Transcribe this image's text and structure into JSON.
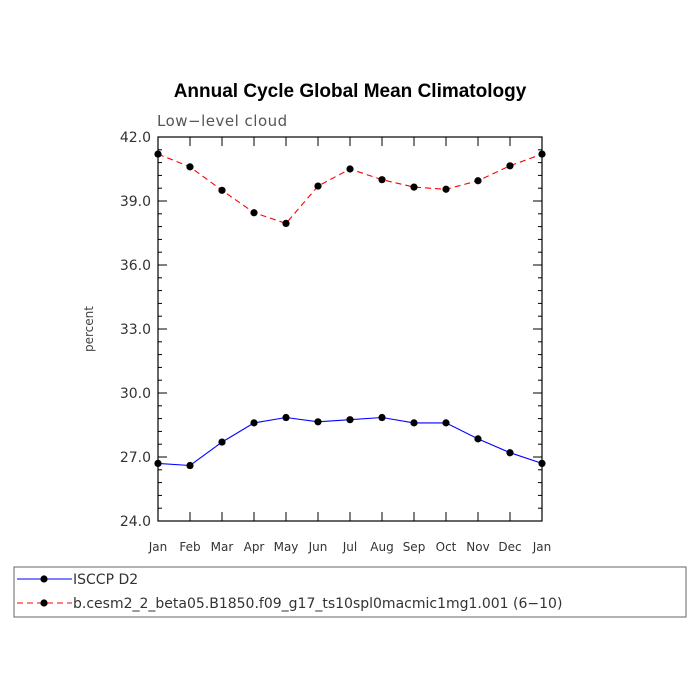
{
  "chart_data": {
    "type": "line",
    "title": "Annual Cycle Global Mean Climatology",
    "subtitle": "Low−level cloud",
    "xlabel": "",
    "ylabel": "percent",
    "categories": [
      "Jan",
      "Feb",
      "Mar",
      "Apr",
      "May",
      "Jun",
      "Jul",
      "Aug",
      "Sep",
      "Oct",
      "Nov",
      "Dec",
      "Jan"
    ],
    "ylim": [
      24.0,
      42.0
    ],
    "yticks": [
      "24.0",
      "27.0",
      "30.0",
      "33.0",
      "36.0",
      "39.0",
      "42.0"
    ],
    "grid": false,
    "legend_position": "bottom",
    "series": [
      {
        "name": "ISCCP D2",
        "color": "#0000ff",
        "line_style": "solid",
        "marker": "filled-circle",
        "values": [
          26.7,
          26.6,
          27.7,
          28.6,
          28.85,
          28.65,
          28.75,
          28.85,
          28.6,
          28.6,
          27.85,
          27.2,
          26.7
        ]
      },
      {
        "name": "b.cesm2_2_beta05.B1850.f09_g17_ts10spl0macmic1mg1.001 (6−10)",
        "color": "#ff0000",
        "line_style": "dashed",
        "marker": "filled-circle",
        "values": [
          41.2,
          40.6,
          39.5,
          38.45,
          37.95,
          39.7,
          40.5,
          40.0,
          39.65,
          39.55,
          39.95,
          40.65,
          41.2
        ]
      }
    ]
  }
}
